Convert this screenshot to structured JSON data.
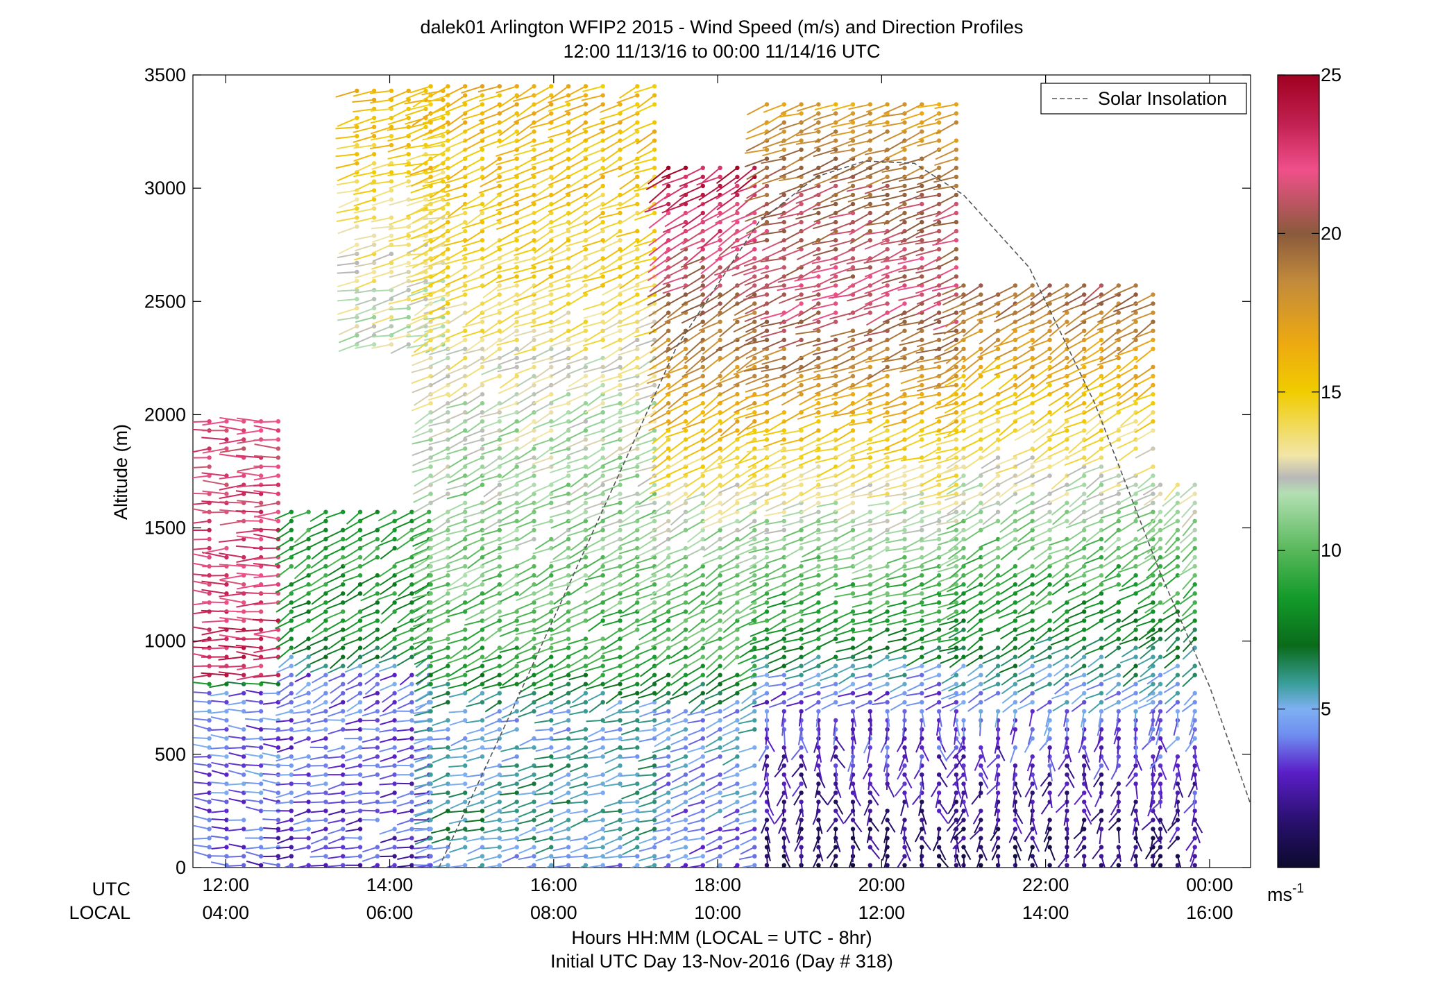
{
  "chart_data": {
    "type": "wind-barb-profile",
    "title": "dalek01 Arlington WFIP2 2015 - Wind Speed (m/s) and Direction Profiles",
    "subtitle": "12:00 11/13/16 to 00:00 11/14/16  UTC",
    "ylabel": "Altitude (m)",
    "xlabel": "Hours HH:MM  (LOCAL = UTC - 8hr)",
    "xlabel2": "Initial UTC Day 13-Nov-2016 (Day # 318)",
    "row_label_utc": "UTC",
    "row_label_local": "LOCAL",
    "ylim": [
      0,
      3500
    ],
    "y_ticks": [
      "0",
      "500",
      "1000",
      "1500",
      "2000",
      "2500",
      "3000",
      "3500"
    ],
    "y_tick_values": [
      0,
      500,
      1000,
      1500,
      2000,
      2500,
      3000,
      3500
    ],
    "xlim_hours": [
      11.6,
      24.5
    ],
    "x_tick_hours": [
      12,
      14,
      16,
      18,
      20,
      22,
      24
    ],
    "x_ticks_utc": [
      "12:00",
      "14:00",
      "16:00",
      "18:00",
      "20:00",
      "22:00",
      "00:00"
    ],
    "x_ticks_local": [
      "04:00",
      "06:00",
      "08:00",
      "10:00",
      "12:00",
      "14:00",
      "16:00"
    ],
    "legend": {
      "label": "Solar Insolation",
      "placement": "top-right",
      "style": "dashed"
    },
    "colorbar": {
      "min": 0,
      "max": 25,
      "ticks": [
        "5",
        "10",
        "15",
        "20",
        "25"
      ],
      "tick_values": [
        5,
        10,
        15,
        20,
        25
      ],
      "unit": "ms",
      "unit_exp": "-1",
      "stops": [
        {
          "v": 0,
          "c": "#0b0a2e"
        },
        {
          "v": 1.5,
          "c": "#2a1070"
        },
        {
          "v": 3,
          "c": "#5a1ec8"
        },
        {
          "v": 4.2,
          "c": "#6f8ff0"
        },
        {
          "v": 5,
          "c": "#7fb0f2"
        },
        {
          "v": 5.8,
          "c": "#3a9e9a"
        },
        {
          "v": 7,
          "c": "#0a6b1a"
        },
        {
          "v": 8.5,
          "c": "#139a2a"
        },
        {
          "v": 10,
          "c": "#58b85a"
        },
        {
          "v": 11.8,
          "c": "#b3dfb3"
        },
        {
          "v": 12.3,
          "c": "#b8b8b8"
        },
        {
          "v": 13,
          "c": "#f2e6a8"
        },
        {
          "v": 15,
          "c": "#f0cc00"
        },
        {
          "v": 16.5,
          "c": "#eeaa10"
        },
        {
          "v": 18.5,
          "c": "#c28a3c"
        },
        {
          "v": 20,
          "c": "#8a5a3c"
        },
        {
          "v": 22,
          "c": "#f0508a"
        },
        {
          "v": 23.5,
          "c": "#c02050"
        },
        {
          "v": 25,
          "c": "#a00020"
        }
      ]
    },
    "solar_insolation_curve": {
      "x_hours": [
        14.6,
        15.5,
        16.5,
        17.5,
        18.5,
        19.2,
        19.8,
        20.4,
        21.0,
        21.8,
        22.6,
        23.4,
        24.0,
        24.5
      ],
      "altitude_scaled": [
        0,
        700,
        1500,
        2300,
        2850,
        3050,
        3120,
        3110,
        2970,
        2650,
        2050,
        1300,
        800,
        280
      ]
    },
    "regions": [
      {
        "t0": 11.8,
        "t1": 12.8,
        "z0": 0,
        "z1": 2000,
        "speed_profile": [
          [
            0,
            3
          ],
          [
            300,
            4
          ],
          [
            800,
            4
          ],
          [
            850,
            23
          ],
          [
            2000,
            22
          ]
        ],
        "dir": 270,
        "dir_low": 275
      },
      {
        "t0": 12.8,
        "t1": 14.5,
        "z0": 0,
        "z1": 1600,
        "speed_profile": [
          [
            0,
            3
          ],
          [
            300,
            3.5
          ],
          [
            850,
            4
          ],
          [
            1000,
            8
          ],
          [
            1600,
            9
          ]
        ],
        "dir": 240,
        "dir_low": 260
      },
      {
        "t0": 13.6,
        "t1": 14.8,
        "z0": 2300,
        "z1": 3450,
        "speed_profile": [
          [
            2300,
            12
          ],
          [
            2800,
            13.5
          ],
          [
            3450,
            16
          ]
        ],
        "dir": 255,
        "dir_low": 255
      },
      {
        "t0": 14.5,
        "t1": 17.4,
        "z0": 0,
        "z1": 3450,
        "speed_profile": [
          [
            0,
            4.5
          ],
          [
            200,
            6
          ],
          [
            700,
            5
          ],
          [
            900,
            9
          ],
          [
            1400,
            11
          ],
          [
            2000,
            12
          ],
          [
            2600,
            14.5
          ],
          [
            3450,
            16
          ]
        ],
        "dir": 245,
        "dir_low": 255
      },
      {
        "t0": 17.4,
        "t1": 18.6,
        "z0": 0,
        "z1": 3100,
        "speed_profile": [
          [
            0,
            4
          ],
          [
            700,
            5
          ],
          [
            900,
            9
          ],
          [
            1500,
            11.5
          ],
          [
            2000,
            16.5
          ],
          [
            2500,
            20
          ],
          [
            3100,
            24
          ]
        ],
        "dir": 240,
        "dir_low": 250
      },
      {
        "t0": 18.6,
        "t1": 21.0,
        "z0": 0,
        "z1": 3400,
        "speed_profile": [
          [
            0,
            1
          ],
          [
            400,
            2.5
          ],
          [
            800,
            4
          ],
          [
            1000,
            8
          ],
          [
            1500,
            11.5
          ],
          [
            2000,
            16
          ],
          [
            2500,
            21.5
          ],
          [
            3000,
            20
          ],
          [
            3400,
            17
          ]
        ],
        "dir": 250,
        "dir_low": 180
      },
      {
        "t0": 21.0,
        "t1": 23.4,
        "z0": 0,
        "z1": 2600,
        "speed_profile": [
          [
            0,
            1
          ],
          [
            500,
            3
          ],
          [
            800,
            5
          ],
          [
            1100,
            8
          ],
          [
            1600,
            11.5
          ],
          [
            2100,
            15.5
          ],
          [
            2600,
            20
          ]
        ],
        "dir": 240,
        "dir_low": 190
      },
      {
        "t0": 23.4,
        "t1": 24.0,
        "z0": 0,
        "z1": 1700,
        "speed_profile": [
          [
            0,
            1.5
          ],
          [
            400,
            3
          ],
          [
            800,
            5
          ],
          [
            1200,
            9
          ],
          [
            1700,
            13
          ]
        ],
        "dir": 230,
        "dir_low": 190
      }
    ]
  }
}
